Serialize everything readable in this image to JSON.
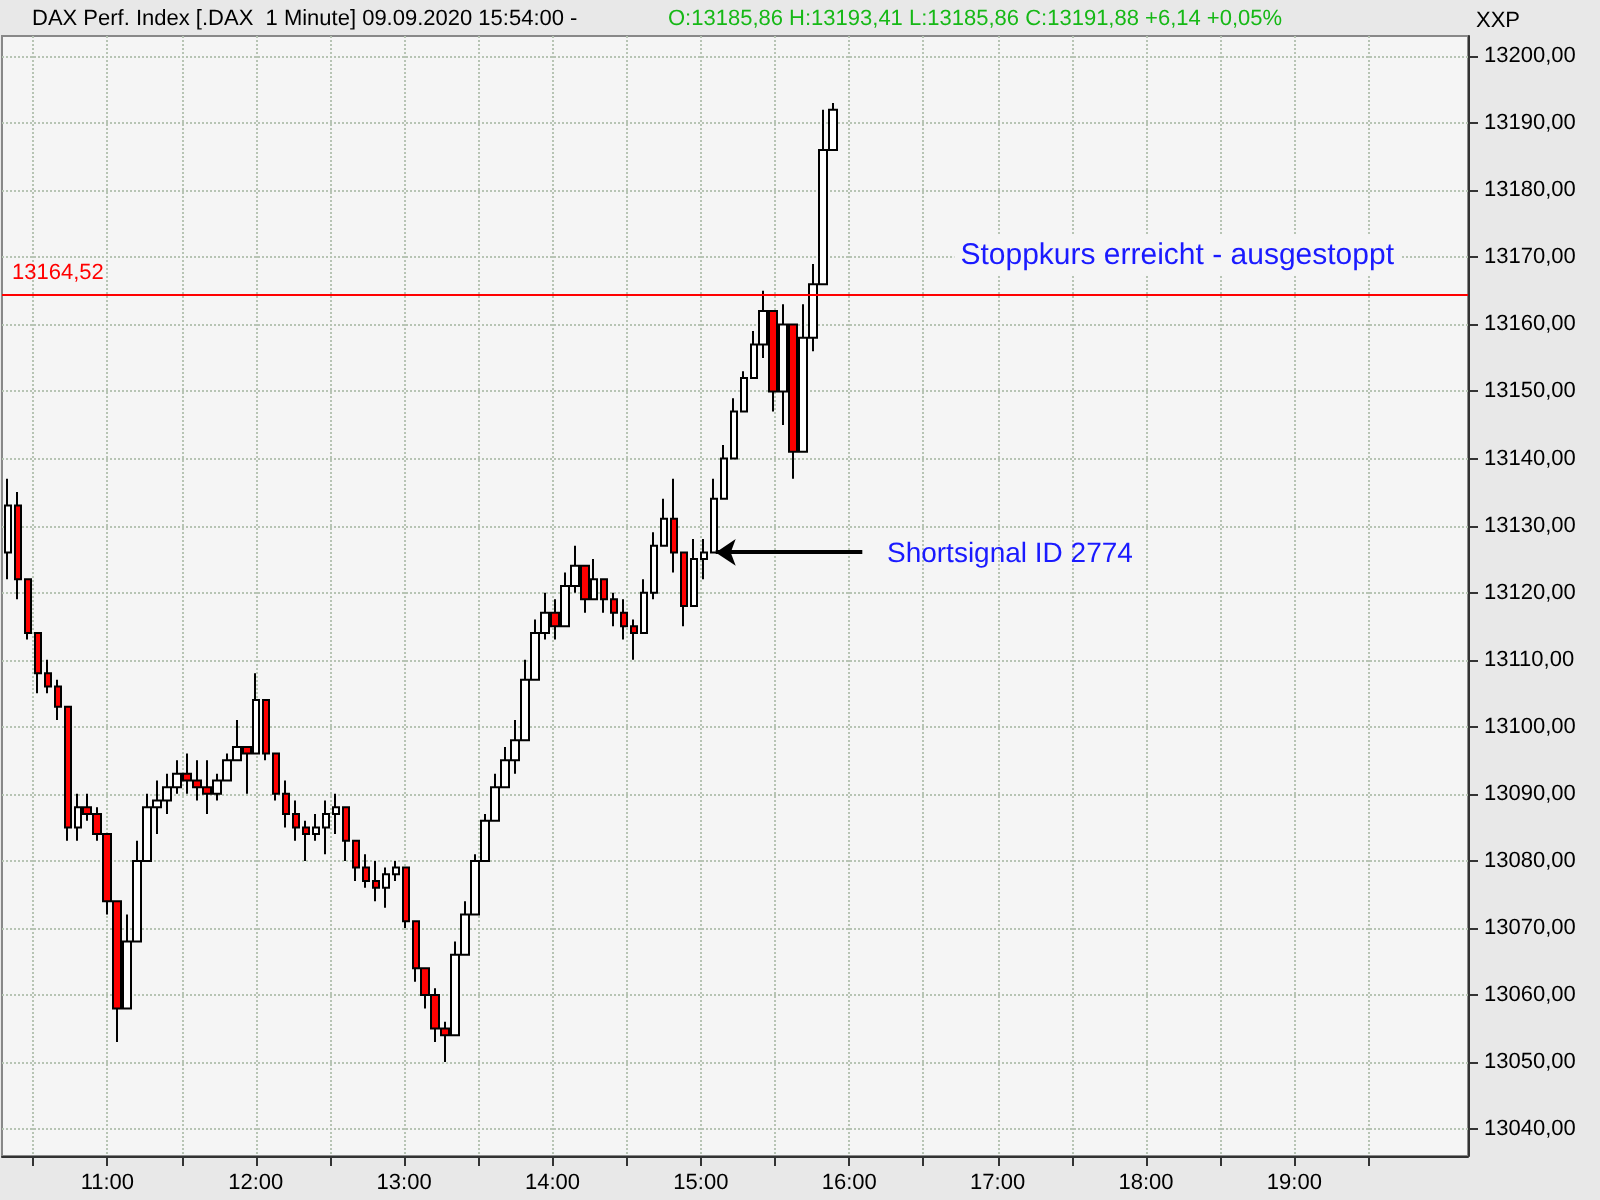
{
  "chart_data": {
    "type": "candlestick",
    "title": "DAX Perf. Index [.DAX  1 Minute] 09.09.2020 15:54:00 -",
    "subtitle": "O:13185,86 H:13193,41 L:13185,86 C:13191,88 +6,14 +0,05%",
    "x": [
      10.33,
      10.397,
      10.464,
      10.531,
      10.598,
      10.665,
      10.732,
      10.799,
      10.866,
      10.933,
      11.0,
      11.067,
      11.134,
      11.201,
      11.268,
      11.335,
      11.402,
      11.469,
      11.536,
      11.603,
      11.67,
      11.737,
      11.804,
      11.871,
      11.938,
      12.005,
      12.072,
      12.139,
      12.206,
      12.273,
      12.34,
      12.407,
      12.474,
      12.541,
      12.608,
      12.675,
      12.742,
      12.809,
      12.876,
      12.943,
      13.01,
      13.077,
      13.144,
      13.211,
      13.278,
      13.345,
      13.412,
      13.479,
      13.546,
      13.613,
      13.68,
      13.747,
      13.814,
      13.881,
      13.948,
      14.015,
      14.082,
      14.149,
      14.216,
      14.283,
      14.35,
      14.417,
      14.484,
      14.551,
      14.618,
      14.685,
      14.752,
      14.819,
      14.886,
      14.953,
      15.02,
      15.087,
      15.154,
      15.221,
      15.288,
      15.355,
      15.422,
      15.489,
      15.556,
      15.623,
      15.69,
      15.757,
      15.824,
      15.89
    ],
    "ohlc": [
      [
        13126,
        13137,
        13122,
        13133
      ],
      [
        13133,
        13135,
        13119,
        13122
      ],
      [
        13122,
        13122,
        13113,
        13114
      ],
      [
        13114,
        13114,
        13105,
        13108
      ],
      [
        13108,
        13110,
        13105,
        13106
      ],
      [
        13106,
        13107,
        13101,
        13103
      ],
      [
        13103,
        13103,
        13083,
        13085
      ],
      [
        13085,
        13090,
        13083,
        13088
      ],
      [
        13088,
        13090,
        13086,
        13087
      ],
      [
        13087,
        13088,
        13083,
        13084
      ],
      [
        13084,
        13084,
        13072,
        13074
      ],
      [
        13074,
        13074,
        13053,
        13058
      ],
      [
        13058,
        13072,
        13058,
        13068
      ],
      [
        13068,
        13083,
        13068,
        13080
      ],
      [
        13080,
        13090,
        13080,
        13088
      ],
      [
        13088,
        13092,
        13084,
        13089
      ],
      [
        13089,
        13093,
        13087,
        13091
      ],
      [
        13091,
        13095,
        13090,
        13093
      ],
      [
        13093,
        13096,
        13090,
        13092
      ],
      [
        13092,
        13095,
        13089,
        13091
      ],
      [
        13091,
        13095,
        13087,
        13090
      ],
      [
        13090,
        13093,
        13089,
        13092
      ],
      [
        13092,
        13096,
        13092,
        13095
      ],
      [
        13095,
        13101,
        13095,
        13097
      ],
      [
        13097,
        13097,
        13090,
        13096
      ],
      [
        13096,
        13108,
        13096,
        13104
      ],
      [
        13104,
        13104,
        13095,
        13096
      ],
      [
        13096,
        13096,
        13089,
        13090
      ],
      [
        13090,
        13092,
        13085,
        13087
      ],
      [
        13087,
        13089,
        13083,
        13085
      ],
      [
        13085,
        13086,
        13080,
        13084
      ],
      [
        13084,
        13087,
        13083,
        13085
      ],
      [
        13085,
        13089,
        13081,
        13087
      ],
      [
        13087,
        13090,
        13084,
        13088
      ],
      [
        13088,
        13088,
        13080,
        13083
      ],
      [
        13083,
        13083,
        13077,
        13079
      ],
      [
        13079,
        13081,
        13076,
        13077
      ],
      [
        13077,
        13080,
        13074,
        13076
      ],
      [
        13076,
        13079,
        13073,
        13078
      ],
      [
        13078,
        13080,
        13077,
        13079
      ],
      [
        13079,
        13079,
        13070,
        13071
      ],
      [
        13071,
        13071,
        13062,
        13064
      ],
      [
        13064,
        13064,
        13058,
        13060
      ],
      [
        13060,
        13061,
        13053,
        13055
      ],
      [
        13055,
        13056,
        13050,
        13054
      ],
      [
        13054,
        13068,
        13054,
        13066
      ],
      [
        13066,
        13074,
        13066,
        13072
      ],
      [
        13072,
        13081,
        13072,
        13080
      ],
      [
        13080,
        13087,
        13080,
        13086
      ],
      [
        13086,
        13093,
        13086,
        13091
      ],
      [
        13091,
        13097,
        13091,
        13095
      ],
      [
        13095,
        13101,
        13093,
        13098
      ],
      [
        13098,
        13110,
        13098,
        13107
      ],
      [
        13107,
        13116,
        13107,
        13114
      ],
      [
        13114,
        13120,
        13113,
        13117
      ],
      [
        13117,
        13119,
        13113,
        13115
      ],
      [
        13115,
        13123,
        13115,
        13121
      ],
      [
        13121,
        13127,
        13120,
        13124
      ],
      [
        13124,
        13124,
        13117,
        13119
      ],
      [
        13119,
        13125,
        13119,
        13122
      ],
      [
        13122,
        13122,
        13117,
        13119
      ],
      [
        13119,
        13120,
        13115,
        13117
      ],
      [
        13117,
        13119,
        13113,
        13115
      ],
      [
        13115,
        13116,
        13110,
        13114
      ],
      [
        13114,
        13122,
        13114,
        13120
      ],
      [
        13120,
        13129,
        13119,
        13127
      ],
      [
        13127,
        13134,
        13127,
        13131
      ],
      [
        13131,
        13137,
        13123,
        13126
      ],
      [
        13126,
        13126,
        13115,
        13118
      ],
      [
        13118,
        13128,
        13118,
        13125
      ],
      [
        13125,
        13128,
        13122,
        13126
      ],
      [
        13126,
        13137,
        13126,
        13134
      ],
      [
        13134,
        13142,
        13134,
        13140
      ],
      [
        13140,
        13149,
        13140,
        13147
      ],
      [
        13147,
        13153,
        13147,
        13152
      ],
      [
        13152,
        13159,
        13152,
        13157
      ],
      [
        13157,
        13165,
        13155,
        13162
      ],
      [
        13162,
        13162,
        13147,
        13150
      ],
      [
        13150,
        13163,
        13145,
        13160
      ],
      [
        13160,
        13160,
        13137,
        13141
      ],
      [
        13141,
        13163,
        13141,
        13158
      ],
      [
        13158,
        13169,
        13156,
        13166
      ],
      [
        13166,
        13192,
        13166,
        13186
      ],
      [
        13186,
        13193,
        13186,
        13192
      ]
    ],
    "xlim": [
      10.29,
      20.17
    ],
    "xticks": [
      {
        "value": 10.5,
        "label": null
      },
      {
        "value": 11,
        "label": "11:00"
      },
      {
        "value": 11.5,
        "label": null
      },
      {
        "value": 12,
        "label": "12:00"
      },
      {
        "value": 12.5,
        "label": null
      },
      {
        "value": 13,
        "label": "13:00"
      },
      {
        "value": 13.5,
        "label": null
      },
      {
        "value": 14,
        "label": "14:00"
      },
      {
        "value": 14.5,
        "label": null
      },
      {
        "value": 15,
        "label": "15:00"
      },
      {
        "value": 15.5,
        "label": null
      },
      {
        "value": 16,
        "label": "16:00"
      },
      {
        "value": 16.5,
        "label": null
      },
      {
        "value": 17,
        "label": "17:00"
      },
      {
        "value": 17.5,
        "label": null
      },
      {
        "value": 18,
        "label": "18:00"
      },
      {
        "value": 18.5,
        "label": null
      },
      {
        "value": 19,
        "label": "19:00"
      },
      {
        "value": 19.5,
        "label": null
      }
    ],
    "ylim": [
      13036,
      13203
    ],
    "yticks": [
      {
        "value": 13040,
        "label": "13040,00"
      },
      {
        "value": 13050,
        "label": "13050,00"
      },
      {
        "value": 13060,
        "label": "13060,00"
      },
      {
        "value": 13070,
        "label": "13070,00"
      },
      {
        "value": 13080,
        "label": "13080,00"
      },
      {
        "value": 13090,
        "label": "13090,00"
      },
      {
        "value": 13100,
        "label": "13100,00"
      },
      {
        "value": 13110,
        "label": "13110,00"
      },
      {
        "value": 13120,
        "label": "13120,00"
      },
      {
        "value": 13130,
        "label": "13130,00"
      },
      {
        "value": 13140,
        "label": "13140,00"
      },
      {
        "value": 13150,
        "label": "13150,00"
      },
      {
        "value": 13160,
        "label": "13160,00"
      },
      {
        "value": 13170,
        "label": "13170,00"
      },
      {
        "value": 13180,
        "label": "13180,00"
      },
      {
        "value": 13190,
        "label": "13190,00"
      },
      {
        "value": 13200,
        "label": "13200,00"
      }
    ],
    "ref_lines": [
      {
        "axis": "y",
        "value": 13164.52,
        "label": "13164,52",
        "color": "#ff0000"
      }
    ],
    "annotations": [
      {
        "text": "Shortsignal ID 2774",
        "x": 15.1,
        "y": 13126
      },
      "Stoppkurs erreicht - ausgestoppt",
      "XXP"
    ],
    "grid": true
  }
}
